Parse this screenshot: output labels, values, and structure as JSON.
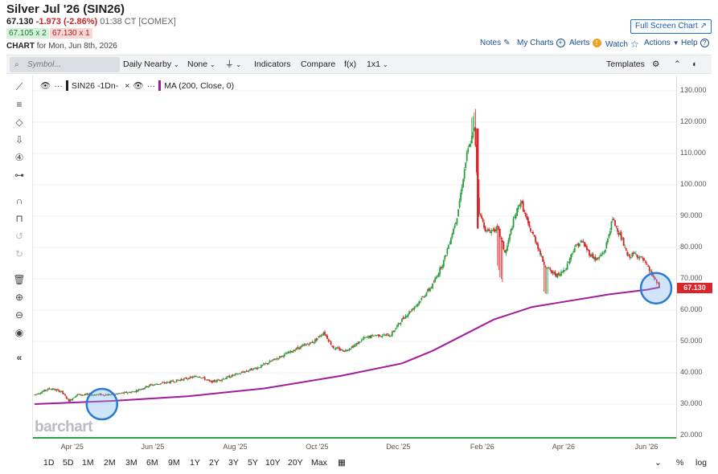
{
  "header": {
    "title": "Silver Jul '26 (SIN26)",
    "last": "67.130",
    "change": "-1.973 (-2.86%)",
    "time": "01:38 CT [COMEX]",
    "bid": "67.105 x 2",
    "ask": "67.130 x 1",
    "chart_label": "CHART",
    "chart_date": "for Mon, Jun 8th, 2026",
    "full_screen": "Full Screen Chart"
  },
  "top_links": {
    "notes": "Notes",
    "my_charts": "My Charts",
    "alerts": "Alerts",
    "watch": "Watch",
    "actions": "Actions",
    "help": "Help"
  },
  "toolbar": {
    "symbol_placeholder": "Symbol...",
    "period": "Daily Nearby",
    "none": "None",
    "indicators": "Indicators",
    "compare": "Compare",
    "fx": "f(x)",
    "layout": "1x1",
    "templates": "Templates"
  },
  "legend": {
    "series": "SIN26 -1Dn-",
    "ma": "MA (200, Close, 0)"
  },
  "price_tag": "67.130",
  "brand": "barchart",
  "ranges": [
    "1D",
    "5D",
    "1M",
    "2M",
    "3M",
    "6M",
    "9M",
    "1Y",
    "2Y",
    "3Y",
    "5Y",
    "10Y",
    "20Y",
    "Max"
  ],
  "axis_options": {
    "percent": "%",
    "log": "log"
  },
  "colors": {
    "up": "#2e9e3f",
    "down": "#d9262a",
    "ma": "#a21b9c",
    "accent": "#1a5fb4",
    "highlight": "#2a7bd3"
  },
  "chart_data": {
    "type": "candlestick",
    "y_ticks": [
      "130.000",
      "120.000",
      "110.000",
      "100.000",
      "90.000",
      "80.000",
      "70.000",
      "60.000",
      "50.000",
      "40.000",
      "30.000",
      "20.000"
    ],
    "ylim": [
      20,
      130
    ],
    "x_ticks": [
      "Apr '25",
      "Jun '25",
      "Aug '25",
      "Oct '25",
      "Dec '25",
      "Feb '26",
      "Apr '26",
      "Jun '26"
    ],
    "close_path": [
      [
        0,
        33
      ],
      [
        10,
        34
      ],
      [
        20,
        35
      ],
      [
        35,
        34
      ],
      [
        45,
        31
      ],
      [
        55,
        33
      ],
      [
        75,
        33
      ],
      [
        100,
        33
      ],
      [
        130,
        34
      ],
      [
        150,
        36
      ],
      [
        175,
        37
      ],
      [
        195,
        38
      ],
      [
        215,
        39
      ],
      [
        230,
        37
      ],
      [
        245,
        38
      ],
      [
        270,
        40
      ],
      [
        295,
        42
      ],
      [
        320,
        45
      ],
      [
        345,
        48
      ],
      [
        365,
        50
      ],
      [
        378,
        53
      ],
      [
        390,
        48
      ],
      [
        405,
        47
      ],
      [
        420,
        49
      ],
      [
        430,
        51
      ],
      [
        445,
        52
      ],
      [
        465,
        52
      ],
      [
        480,
        57
      ],
      [
        500,
        62
      ],
      [
        520,
        68
      ],
      [
        535,
        76
      ],
      [
        552,
        90
      ],
      [
        565,
        110
      ],
      [
        575,
        118
      ],
      [
        580,
        92
      ],
      [
        590,
        85
      ],
      [
        605,
        86
      ],
      [
        615,
        78
      ],
      [
        625,
        88
      ],
      [
        635,
        95
      ],
      [
        645,
        87
      ],
      [
        655,
        82
      ],
      [
        665,
        75
      ],
      [
        675,
        72
      ],
      [
        685,
        71
      ],
      [
        695,
        74
      ],
      [
        705,
        80
      ],
      [
        715,
        82
      ],
      [
        725,
        78
      ],
      [
        735,
        76
      ],
      [
        745,
        79
      ],
      [
        755,
        89
      ],
      [
        765,
        84
      ],
      [
        775,
        77
      ],
      [
        785,
        78
      ],
      [
        795,
        76
      ],
      [
        805,
        72
      ],
      [
        812,
        69
      ],
      [
        817,
        67.13
      ]
    ],
    "ma": {
      "name": "MA (200, Close, 0)",
      "path": [
        [
          0,
          30
        ],
        [
          100,
          31
        ],
        [
          200,
          32.5
        ],
        [
          300,
          35
        ],
        [
          400,
          39
        ],
        [
          480,
          43
        ],
        [
          520,
          47
        ],
        [
          560,
          52
        ],
        [
          600,
          57
        ],
        [
          650,
          61
        ],
        [
          700,
          63
        ],
        [
          750,
          65
        ],
        [
          800,
          66.5
        ],
        [
          817,
          67.3
        ]
      ]
    },
    "last": 67.13,
    "markers": [
      {
        "day": 88,
        "price": 30
      },
      {
        "day": 812,
        "price": 67
      }
    ]
  }
}
